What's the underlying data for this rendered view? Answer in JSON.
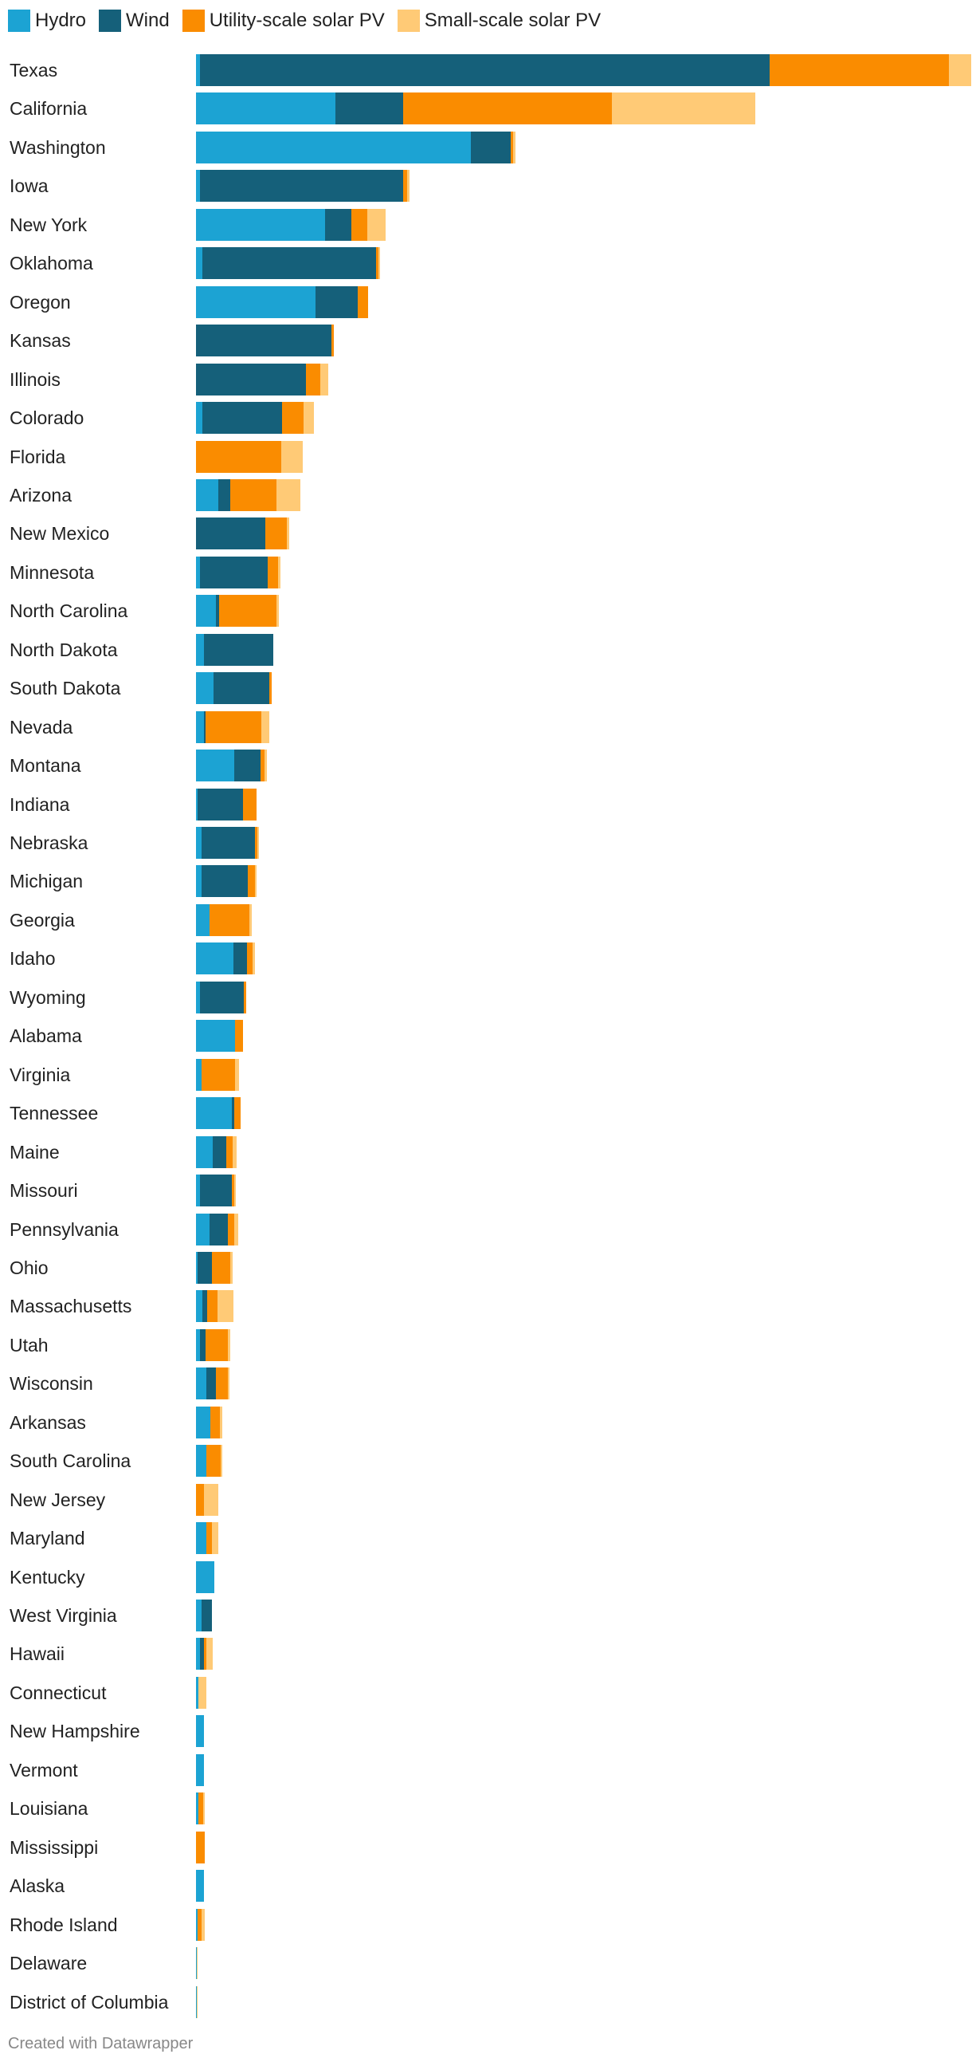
{
  "chart_data": {
    "type": "bar",
    "orientation": "horizontal",
    "stacked": true,
    "legend_position": "top-left",
    "grid": false,
    "series": [
      {
        "name": "Hydro",
        "color": "#1ca3d3",
        "values": [
          0.5,
          17.5,
          34.5,
          0.5,
          16.2,
          0.8,
          15,
          0,
          0,
          0.8,
          0,
          2.8,
          0,
          0.5,
          2.5,
          1,
          2.2,
          1,
          4.8,
          0.2,
          0.7,
          0.7,
          1.7,
          4.7,
          0.5,
          4.9,
          0.7,
          4.5,
          2.1,
          0.5,
          1.7,
          0.2,
          0.8,
          0.5,
          1.3,
          1.8,
          1.3,
          0,
          1.3,
          2.3,
          0.7,
          0.5,
          0.3,
          1,
          1,
          0.3,
          0,
          1,
          0.2,
          0.1,
          0.1
        ]
      },
      {
        "name": "Wind",
        "color": "#15607a",
        "values": [
          71.5,
          8.5,
          5,
          25.5,
          3.3,
          21.8,
          5.3,
          17,
          13.8,
          10,
          0,
          1.5,
          8.7,
          8.5,
          0.4,
          8.7,
          7,
          0.2,
          3.3,
          5.7,
          6.7,
          5.8,
          0,
          1.7,
          5.5,
          0,
          0,
          0.3,
          1.7,
          4,
          2.3,
          1.8,
          0.6,
          0.7,
          1.2,
          0,
          0,
          0,
          0,
          0,
          1.3,
          0.5,
          0,
          0,
          0,
          0,
          0,
          0,
          0,
          0,
          0
        ]
      },
      {
        "name": "Utility-scale solar PV",
        "color": "#fa8c00",
        "values": [
          22.5,
          26.2,
          0.3,
          0.5,
          2,
          0.3,
          1.3,
          0.3,
          1.8,
          2.7,
          10.7,
          5.8,
          2.7,
          1.3,
          7.2,
          0,
          0.3,
          7,
          0.5,
          1.7,
          0.3,
          0.9,
          5,
          0.7,
          0.3,
          1,
          4.2,
          0.8,
          0.8,
          0.3,
          0.8,
          2.3,
          1.3,
          2.8,
          1.5,
          1.2,
          1.8,
          1,
          0.7,
          0,
          0,
          0.3,
          0,
          0,
          0,
          0.6,
          1.1,
          0,
          0.5,
          0,
          0
        ]
      },
      {
        "name": "Small-scale solar PV",
        "color": "#ffca76",
        "values": [
          2.8,
          18,
          0.3,
          0.3,
          2.3,
          0.2,
          0,
          0,
          1,
          1.3,
          2.7,
          3,
          0.3,
          0.3,
          0.3,
          0,
          0,
          1,
          0.3,
          0,
          0.2,
          0.2,
          0.3,
          0.3,
          0,
          0,
          0.5,
          0,
          0.5,
          0.2,
          0.5,
          0.3,
          2,
          0.3,
          0.2,
          0.3,
          0.2,
          1.8,
          0.8,
          0,
          0,
          0.8,
          1,
          0,
          0,
          0.2,
          0,
          0,
          0.4,
          0.1,
          0.1
        ]
      }
    ],
    "categories": [
      "Texas",
      "California",
      "Washington",
      "Iowa",
      "New York",
      "Oklahoma",
      "Oregon",
      "Kansas",
      "Illinois",
      "Colorado",
      "Florida",
      "Arizona",
      "New Mexico",
      "Minnesota",
      "North Carolina",
      "North Dakota",
      "South Dakota",
      "Nevada",
      "Montana",
      "Indiana",
      "Nebraska",
      "Michigan",
      "Georgia",
      "Idaho",
      "Wyoming",
      "Alabama",
      "Virginia",
      "Tennessee",
      "Maine",
      "Missouri",
      "Pennsylvania",
      "Ohio",
      "Massachusetts",
      "Utah",
      "Wisconsin",
      "Arkansas",
      "South Carolina",
      "New Jersey",
      "Maryland",
      "Kentucky",
      "West Virginia",
      "Hawaii",
      "Connecticut",
      "New Hampshire",
      "Vermont",
      "Louisiana",
      "Mississippi",
      "Alaska",
      "Rhode Island",
      "Delaware",
      "District of Columbia"
    ],
    "xlim": [
      0,
      97.5
    ]
  },
  "footer": {
    "credit": "Created with Datawrapper"
  }
}
